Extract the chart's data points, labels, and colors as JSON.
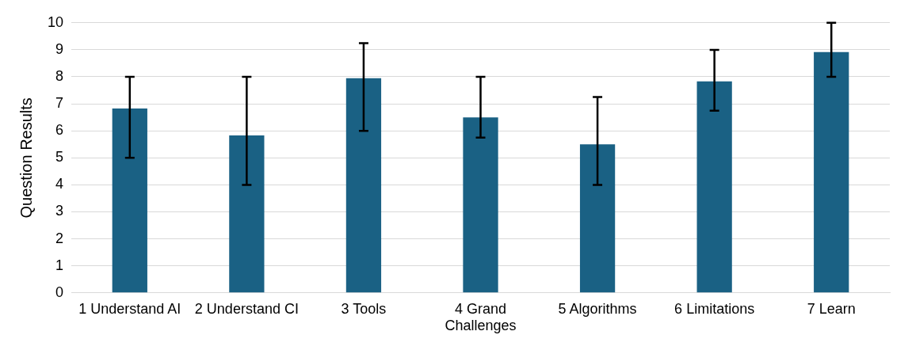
{
  "chart_data": {
    "type": "bar",
    "ylabel": "Question Results",
    "categories": [
      "1 Understand AI",
      "2 Understand CI",
      "3 Tools",
      "4 Grand Challenges",
      "5 Algorithms",
      "6 Limitations",
      "7 Learn"
    ],
    "values": [
      6.83,
      5.83,
      7.95,
      6.5,
      5.5,
      7.83,
      8.92
    ],
    "errors": [
      [
        5,
        8
      ],
      [
        4,
        8
      ],
      [
        6,
        9.25
      ],
      [
        5.75,
        8
      ],
      [
        4,
        7.25
      ],
      [
        6.75,
        9
      ],
      [
        8,
        10
      ]
    ],
    "color": "#1a6184",
    "ylim": [
      0,
      10
    ],
    "yticks": [
      0,
      1,
      2,
      3,
      4,
      5,
      6,
      7,
      8,
      9,
      10
    ],
    "grid": "y",
    "legend": false
  }
}
